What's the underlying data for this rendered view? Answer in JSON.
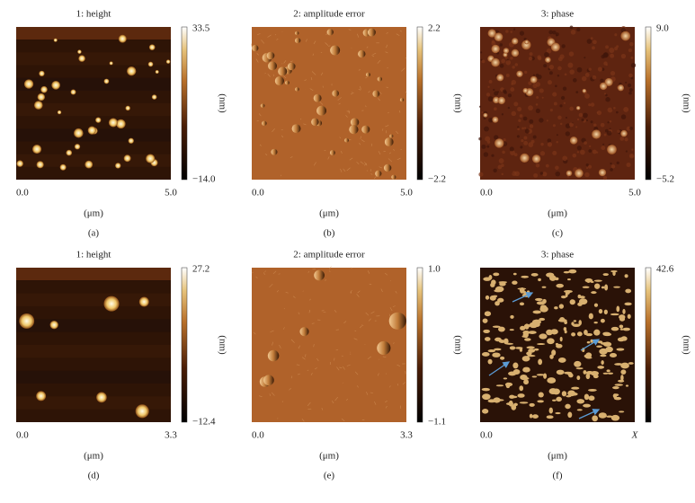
{
  "panels": [
    {
      "title": "1: height",
      "scale_max": "33.5",
      "scale_min": "−14.0",
      "scale_unit": "(nm)",
      "x_start": "0.0",
      "x_end": "5.0",
      "x_unit": "(μm)",
      "label": "(a)"
    },
    {
      "title": "2: amplitude error",
      "scale_max": "2.2",
      "scale_min": "−2.2",
      "scale_unit": "(nm)",
      "x_start": "0.0",
      "x_end": "5.0",
      "x_unit": "(μm)",
      "label": "(b)"
    },
    {
      "title": "3: phase",
      "scale_max": "9.0",
      "scale_min": "−5.2",
      "scale_unit": "(nm)",
      "x_start": "0.0",
      "x_end": "5.0",
      "x_unit": "(μm)",
      "label": "(c)"
    },
    {
      "title": "1: height",
      "scale_max": "27.2",
      "scale_min": "−12.4",
      "scale_unit": "(nm)",
      "x_start": "0.0",
      "x_end": "3.3",
      "x_unit": "(μm)",
      "label": "(d)"
    },
    {
      "title": "2: amplitude error",
      "scale_max": "1.0",
      "scale_min": "−1.1",
      "scale_unit": "(nm)",
      "x_start": "0.0",
      "x_end": "3.3",
      "x_unit": "(μm)",
      "label": "(e)"
    },
    {
      "title": "3: phase",
      "scale_max": "42.6",
      "scale_min": "",
      "scale_unit": "(nm)",
      "x_start": "0.0",
      "x_end": "X",
      "x_unit": "(μm)",
      "label": "(f)"
    }
  ]
}
